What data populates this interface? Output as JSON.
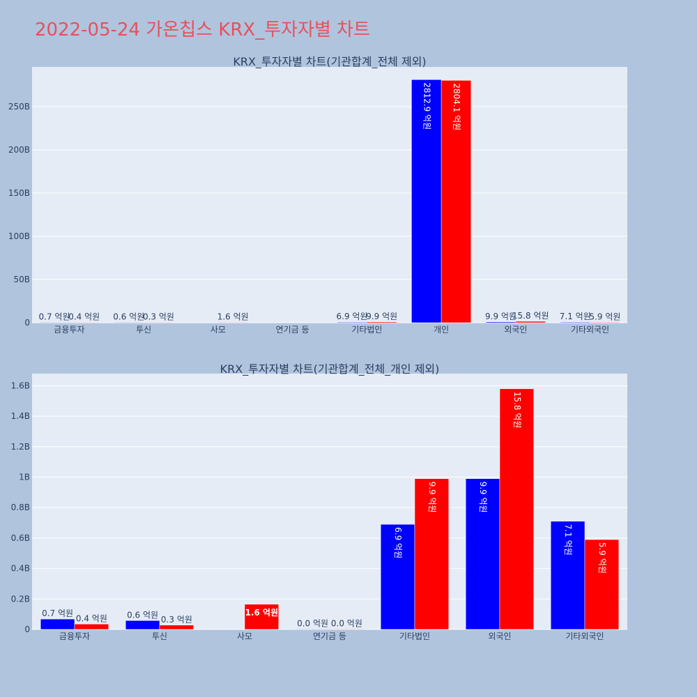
{
  "title": "2022-05-24 가온칩스 KRX_투자자별 차트",
  "colors": {
    "buy": "#0000ff",
    "sell": "#ff0000",
    "title": "#e8505b",
    "plot_bg": "#e5ecf6",
    "page_bg": "#b0c4de"
  },
  "chart_data": [
    {
      "type": "bar",
      "title": "KRX_투자자별 차트(기관합계_전체 제외)",
      "categories": [
        "금융투자",
        "투신",
        "사모",
        "연기금 등",
        "기타법인",
        "개인",
        "외국인",
        "기타외국인"
      ],
      "series": [
        {
          "values": [
            0.07,
            0.06,
            null,
            null,
            0.69,
            281.29,
            0.99,
            0.71
          ],
          "labels": [
            "0.7 억원",
            "0.6 억원",
            "",
            "",
            "6.9 억원",
            "2812.9 억원",
            "9.9 억원",
            "7.1 억원"
          ]
        },
        {
          "values": [
            0.04,
            0.03,
            0.16,
            null,
            0.99,
            280.41,
            1.58,
            0.59
          ],
          "labels": [
            "0.4 억원",
            "0.3 억원",
            "1.6 억원",
            "",
            "9.9 억원",
            "2804.1 억원",
            "15.8 억원",
            "5.9 억원"
          ]
        }
      ],
      "ylim": [
        0,
        296
      ],
      "yticks": [
        0,
        50,
        100,
        150,
        200,
        250
      ],
      "ytick_labels": [
        "0",
        "50B",
        "100B",
        "150B",
        "200B",
        "250B"
      ],
      "grid": true
    },
    {
      "type": "bar",
      "title": "KRX_투자자별 차트(기관합계_전체_개인 제외)",
      "categories": [
        "금융투자",
        "투신",
        "사모",
        "연기금 등",
        "기타법인",
        "외국인",
        "기타외국인"
      ],
      "series": [
        {
          "values": [
            0.068,
            0.058,
            null,
            0.002,
            0.69,
            0.99,
            0.71
          ],
          "labels": [
            "0.7 억원",
            "0.6 억원",
            "",
            "0.0 억원",
            "6.9 억원",
            "9.9 억원",
            "7.1 억원"
          ]
        },
        {
          "values": [
            0.035,
            0.028,
            0.165,
            0.002,
            0.99,
            1.58,
            0.59
          ],
          "labels": [
            "0.4 억원",
            "0.3 억원",
            "1.6 억원",
            "0.0 억원",
            "9.9 억원",
            "15.8 억원",
            "5.9 억원"
          ]
        }
      ],
      "ylim": [
        0,
        1.68
      ],
      "yticks": [
        0,
        0.2,
        0.4,
        0.6,
        0.8,
        1.0,
        1.2,
        1.4,
        1.6
      ],
      "ytick_labels": [
        "0",
        "0.2B",
        "0.4B",
        "0.6B",
        "0.8B",
        "1B",
        "1.2B",
        "1.4B",
        "1.6B"
      ],
      "grid": true
    }
  ]
}
